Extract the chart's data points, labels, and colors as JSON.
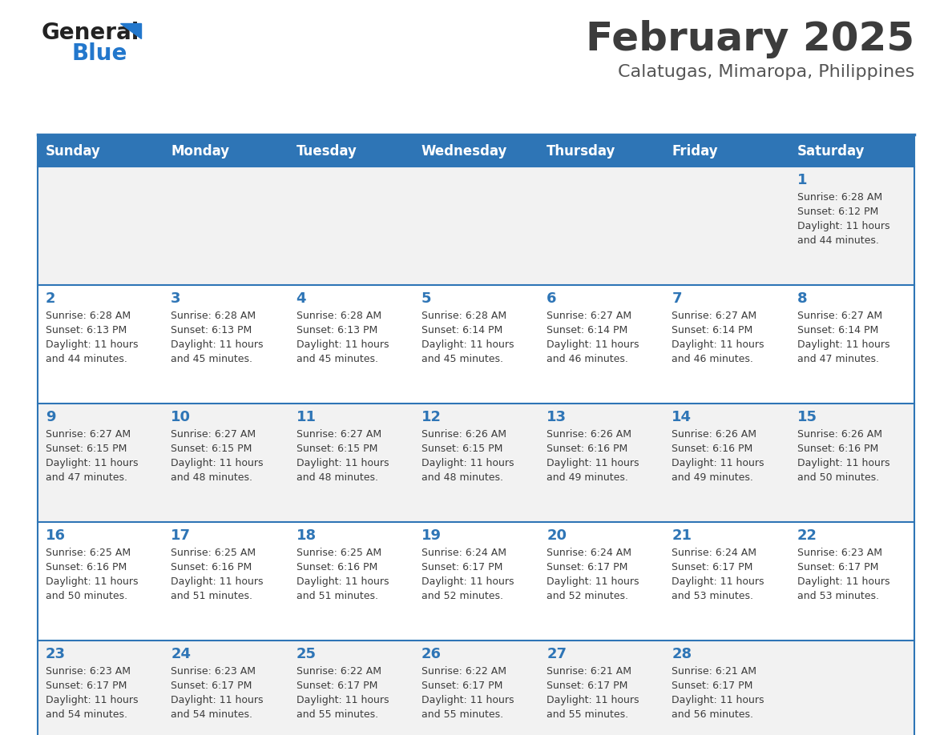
{
  "title": "February 2025",
  "subtitle": "Calatugas, Mimaropa, Philippines",
  "days_of_week": [
    "Sunday",
    "Monday",
    "Tuesday",
    "Wednesday",
    "Thursday",
    "Friday",
    "Saturday"
  ],
  "header_bg": "#2E75B6",
  "header_text": "#FFFFFF",
  "row_bg_odd": "#F2F2F2",
  "row_bg_even": "#FFFFFF",
  "cell_text_color": "#3C3C3C",
  "day_num_color": "#2E75B6",
  "divider_color": "#2E75B6",
  "title_color": "#3C3C3C",
  "subtitle_color": "#555555",
  "logo_general_color": "#222222",
  "logo_blue_color": "#2277CC",
  "calendar_data": [
    [
      {
        "day": "",
        "sunrise": "",
        "sunset": "",
        "daylight": ""
      },
      {
        "day": "",
        "sunrise": "",
        "sunset": "",
        "daylight": ""
      },
      {
        "day": "",
        "sunrise": "",
        "sunset": "",
        "daylight": ""
      },
      {
        "day": "",
        "sunrise": "",
        "sunset": "",
        "daylight": ""
      },
      {
        "day": "",
        "sunrise": "",
        "sunset": "",
        "daylight": ""
      },
      {
        "day": "",
        "sunrise": "",
        "sunset": "",
        "daylight": ""
      },
      {
        "day": "1",
        "sunrise": "6:28 AM",
        "sunset": "6:12 PM",
        "daylight": "11 hours and 44 minutes."
      }
    ],
    [
      {
        "day": "2",
        "sunrise": "6:28 AM",
        "sunset": "6:13 PM",
        "daylight": "11 hours and 44 minutes."
      },
      {
        "day": "3",
        "sunrise": "6:28 AM",
        "sunset": "6:13 PM",
        "daylight": "11 hours and 45 minutes."
      },
      {
        "day": "4",
        "sunrise": "6:28 AM",
        "sunset": "6:13 PM",
        "daylight": "11 hours and 45 minutes."
      },
      {
        "day": "5",
        "sunrise": "6:28 AM",
        "sunset": "6:14 PM",
        "daylight": "11 hours and 45 minutes."
      },
      {
        "day": "6",
        "sunrise": "6:27 AM",
        "sunset": "6:14 PM",
        "daylight": "11 hours and 46 minutes."
      },
      {
        "day": "7",
        "sunrise": "6:27 AM",
        "sunset": "6:14 PM",
        "daylight": "11 hours and 46 minutes."
      },
      {
        "day": "8",
        "sunrise": "6:27 AM",
        "sunset": "6:14 PM",
        "daylight": "11 hours and 47 minutes."
      }
    ],
    [
      {
        "day": "9",
        "sunrise": "6:27 AM",
        "sunset": "6:15 PM",
        "daylight": "11 hours and 47 minutes."
      },
      {
        "day": "10",
        "sunrise": "6:27 AM",
        "sunset": "6:15 PM",
        "daylight": "11 hours and 48 minutes."
      },
      {
        "day": "11",
        "sunrise": "6:27 AM",
        "sunset": "6:15 PM",
        "daylight": "11 hours and 48 minutes."
      },
      {
        "day": "12",
        "sunrise": "6:26 AM",
        "sunset": "6:15 PM",
        "daylight": "11 hours and 48 minutes."
      },
      {
        "day": "13",
        "sunrise": "6:26 AM",
        "sunset": "6:16 PM",
        "daylight": "11 hours and 49 minutes."
      },
      {
        "day": "14",
        "sunrise": "6:26 AM",
        "sunset": "6:16 PM",
        "daylight": "11 hours and 49 minutes."
      },
      {
        "day": "15",
        "sunrise": "6:26 AM",
        "sunset": "6:16 PM",
        "daylight": "11 hours and 50 minutes."
      }
    ],
    [
      {
        "day": "16",
        "sunrise": "6:25 AM",
        "sunset": "6:16 PM",
        "daylight": "11 hours and 50 minutes."
      },
      {
        "day": "17",
        "sunrise": "6:25 AM",
        "sunset": "6:16 PM",
        "daylight": "11 hours and 51 minutes."
      },
      {
        "day": "18",
        "sunrise": "6:25 AM",
        "sunset": "6:16 PM",
        "daylight": "11 hours and 51 minutes."
      },
      {
        "day": "19",
        "sunrise": "6:24 AM",
        "sunset": "6:17 PM",
        "daylight": "11 hours and 52 minutes."
      },
      {
        "day": "20",
        "sunrise": "6:24 AM",
        "sunset": "6:17 PM",
        "daylight": "11 hours and 52 minutes."
      },
      {
        "day": "21",
        "sunrise": "6:24 AM",
        "sunset": "6:17 PM",
        "daylight": "11 hours and 53 minutes."
      },
      {
        "day": "22",
        "sunrise": "6:23 AM",
        "sunset": "6:17 PM",
        "daylight": "11 hours and 53 minutes."
      }
    ],
    [
      {
        "day": "23",
        "sunrise": "6:23 AM",
        "sunset": "6:17 PM",
        "daylight": "11 hours and 54 minutes."
      },
      {
        "day": "24",
        "sunrise": "6:23 AM",
        "sunset": "6:17 PM",
        "daylight": "11 hours and 54 minutes."
      },
      {
        "day": "25",
        "sunrise": "6:22 AM",
        "sunset": "6:17 PM",
        "daylight": "11 hours and 55 minutes."
      },
      {
        "day": "26",
        "sunrise": "6:22 AM",
        "sunset": "6:17 PM",
        "daylight": "11 hours and 55 minutes."
      },
      {
        "day": "27",
        "sunrise": "6:21 AM",
        "sunset": "6:17 PM",
        "daylight": "11 hours and 55 minutes."
      },
      {
        "day": "28",
        "sunrise": "6:21 AM",
        "sunset": "6:17 PM",
        "daylight": "11 hours and 56 minutes."
      },
      {
        "day": "",
        "sunrise": "",
        "sunset": "",
        "daylight": ""
      }
    ]
  ],
  "fig_width": 11.88,
  "fig_height": 9.18,
  "dpi": 100
}
